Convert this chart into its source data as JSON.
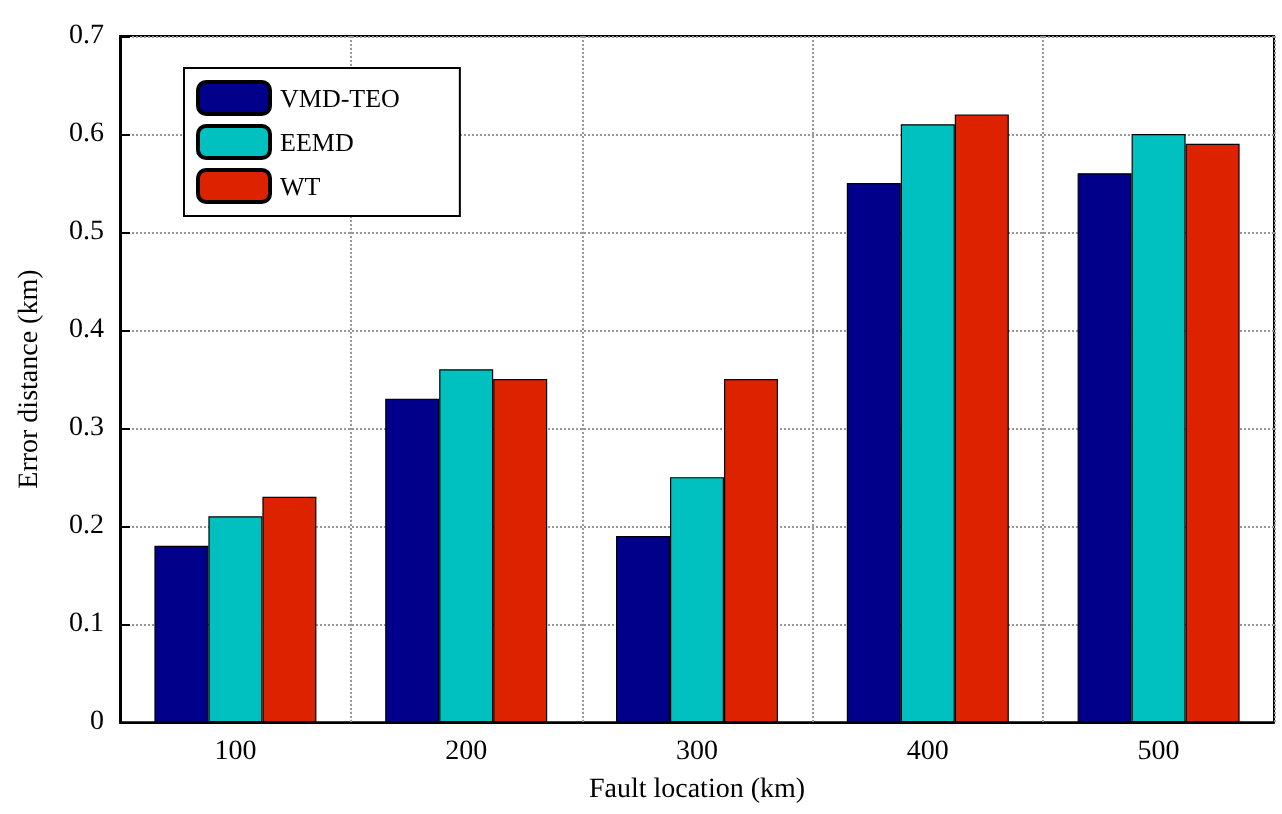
{
  "chart_data": {
    "type": "bar",
    "xlabel": "Fault location (km)",
    "ylabel": "Error distance (km)",
    "categories": [
      "100",
      "200",
      "300",
      "400",
      "500"
    ],
    "series": [
      {
        "name": "VMD-TEO",
        "color": "#00008b",
        "values": [
          0.18,
          0.33,
          0.19,
          0.55,
          0.56
        ]
      },
      {
        "name": "EEMD",
        "color": "#00c0c0",
        "values": [
          0.21,
          0.36,
          0.25,
          0.61,
          0.6
        ]
      },
      {
        "name": "WT",
        "color": "#dd2200",
        "values": [
          0.23,
          0.35,
          0.35,
          0.62,
          0.59
        ]
      }
    ],
    "ylim": [
      0,
      0.7
    ],
    "yticks": [
      0,
      0.1,
      0.2,
      0.3,
      0.4,
      0.5,
      0.6,
      0.7
    ],
    "grid": true,
    "legend": "top left"
  }
}
